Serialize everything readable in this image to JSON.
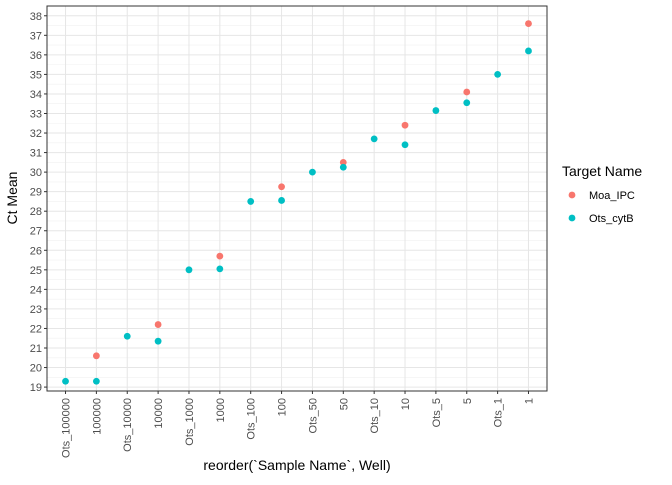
{
  "chart_data": {
    "type": "scatter",
    "title": "",
    "xlabel": "reorder(`Sample Name`, Well)",
    "ylabel": "Ct Mean",
    "categories": [
      "Ots_100000",
      "100000",
      "Ots_10000",
      "10000",
      "Ots_1000",
      "1000",
      "Ots_100",
      "100",
      "Ots_50",
      "50",
      "Ots_10",
      "10",
      "Ots_5",
      "5",
      "Ots_1",
      "1"
    ],
    "ylim": [
      18.8,
      38.5
    ],
    "yticks": [
      19,
      20,
      21,
      22,
      23,
      24,
      25,
      26,
      27,
      28,
      29,
      30,
      31,
      32,
      33,
      34,
      35,
      36,
      37,
      38
    ],
    "grid": true,
    "legend": {
      "title": "Target Name",
      "placement": "right"
    },
    "series": [
      {
        "name": "Moa_IPC",
        "color": "#F8766D",
        "points": [
          {
            "x": "100000",
            "y": 20.6
          },
          {
            "x": "10000",
            "y": 22.2
          },
          {
            "x": "1000",
            "y": 25.7
          },
          {
            "x": "100",
            "y": 29.25
          },
          {
            "x": "50",
            "y": 30.5
          },
          {
            "x": "10",
            "y": 32.4
          },
          {
            "x": "5",
            "y": 34.1
          },
          {
            "x": "1",
            "y": 37.6
          }
        ]
      },
      {
        "name": "Ots_cytB",
        "color": "#00BFC4",
        "points": [
          {
            "x": "Ots_100000",
            "y": 19.3
          },
          {
            "x": "100000",
            "y": 19.3
          },
          {
            "x": "Ots_10000",
            "y": 21.6
          },
          {
            "x": "10000",
            "y": 21.35
          },
          {
            "x": "Ots_1000",
            "y": 25.0
          },
          {
            "x": "1000",
            "y": 25.05
          },
          {
            "x": "Ots_100",
            "y": 28.5
          },
          {
            "x": "100",
            "y": 28.55
          },
          {
            "x": "Ots_50",
            "y": 30.0
          },
          {
            "x": "50",
            "y": 30.25
          },
          {
            "x": "Ots_10",
            "y": 31.7
          },
          {
            "x": "10",
            "y": 31.4
          },
          {
            "x": "Ots_5",
            "y": 33.15
          },
          {
            "x": "5",
            "y": 33.55
          },
          {
            "x": "Ots_1",
            "y": 35.0
          },
          {
            "x": "1",
            "y": 36.2
          }
        ]
      }
    ]
  }
}
